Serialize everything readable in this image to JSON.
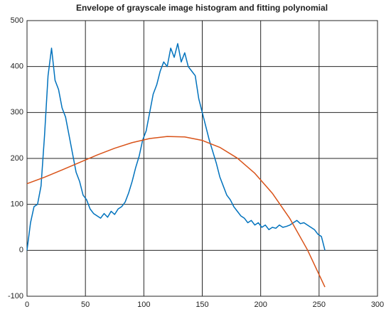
{
  "chart_data": {
    "type": "line",
    "title": "Envelope of grayscale image histogram and fitting polynomial",
    "xlim": [
      0,
      300
    ],
    "xticks": [
      0,
      50,
      100,
      150,
      200,
      250,
      300
    ],
    "ylim": [
      -100,
      500
    ],
    "yticks": [
      -100,
      0,
      100,
      200,
      300,
      400,
      500
    ],
    "grid": true,
    "series": [
      {
        "color": "#0072bd",
        "x": [
          0,
          3,
          6,
          9,
          12,
          15,
          18,
          21,
          24,
          27,
          30,
          33,
          36,
          39,
          42,
          45,
          48,
          51,
          54,
          57,
          60,
          63,
          66,
          69,
          72,
          75,
          78,
          81,
          84,
          87,
          90,
          93,
          96,
          99,
          102,
          105,
          108,
          111,
          114,
          117,
          120,
          123,
          126,
          129,
          132,
          135,
          138,
          141,
          144,
          147,
          150,
          153,
          156,
          159,
          162,
          165,
          168,
          171,
          174,
          177,
          180,
          183,
          186,
          189,
          192,
          195,
          198,
          201,
          204,
          207,
          210,
          213,
          216,
          219,
          222,
          225,
          228,
          231,
          234,
          237,
          240,
          243,
          246,
          249,
          252,
          255
        ],
        "values": [
          0,
          60,
          95,
          100,
          140,
          250,
          380,
          440,
          370,
          350,
          310,
          290,
          250,
          210,
          170,
          150,
          120,
          110,
          90,
          80,
          75,
          70,
          80,
          72,
          85,
          78,
          90,
          95,
          105,
          125,
          150,
          180,
          205,
          240,
          260,
          300,
          340,
          360,
          390,
          410,
          400,
          440,
          420,
          450,
          410,
          430,
          400,
          390,
          380,
          330,
          300,
          270,
          240,
          215,
          190,
          160,
          140,
          120,
          110,
          95,
          85,
          75,
          70,
          60,
          65,
          55,
          60,
          50,
          55,
          45,
          50,
          48,
          55,
          50,
          52,
          55,
          60,
          65,
          58,
          60,
          55,
          50,
          45,
          35,
          30,
          0
        ]
      },
      {
        "color": "#d95319",
        "x": [
          0,
          15,
          30,
          45,
          60,
          75,
          90,
          105,
          120,
          135,
          150,
          165,
          180,
          195,
          210,
          225,
          240,
          255
        ],
        "values": [
          145,
          159.1,
          174.9,
          191.3,
          207.4,
          222.1,
          234.4,
          243.3,
          247.7,
          246.8,
          239.2,
          224.1,
          200.7,
          167.6,
          124.1,
          69.0,
          1.2,
          -80
        ]
      }
    ]
  }
}
